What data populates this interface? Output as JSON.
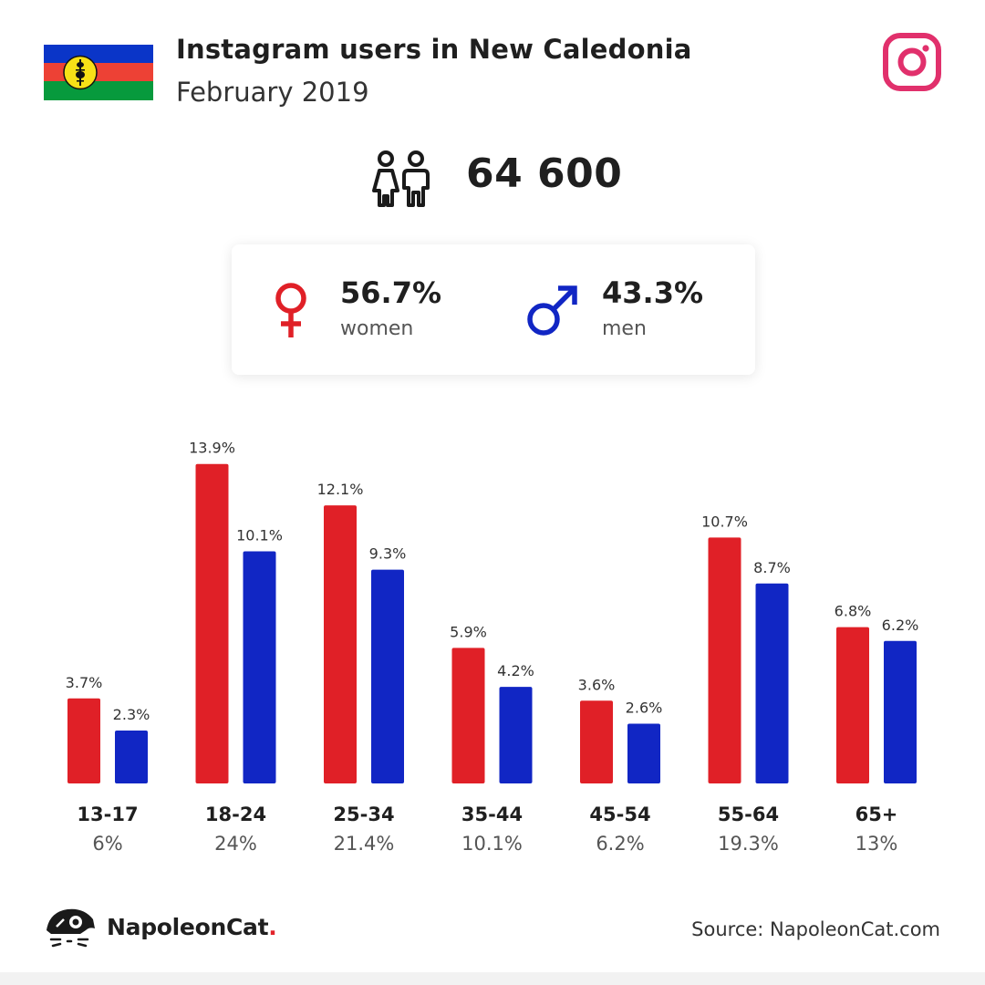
{
  "header": {
    "title": "Instagram users in New Caledonia",
    "subtitle": "February 2019"
  },
  "total_users": "64 600",
  "gender": {
    "women_pct": "56.7%",
    "women_label": "women",
    "men_pct": "43.3%",
    "men_label": "men"
  },
  "colors": {
    "women": "#e02027",
    "men": "#1126c4",
    "instagram": "#e1306c"
  },
  "chart_data": {
    "type": "bar",
    "categories": [
      "13-17",
      "18-24",
      "25-34",
      "35-44",
      "45-54",
      "55-64",
      "65+"
    ],
    "category_totals": [
      "6%",
      "24%",
      "21.4%",
      "10.1%",
      "6.2%",
      "19.3%",
      "13%"
    ],
    "series": [
      {
        "values": [
          3.7,
          13.9,
          12.1,
          5.9,
          3.6,
          10.7,
          6.8
        ],
        "labels": [
          "3.7%",
          "13.9%",
          "12.1%",
          "5.9%",
          "3.6%",
          "10.7%",
          "6.8%"
        ],
        "color": "#e02027"
      },
      {
        "values": [
          2.3,
          10.1,
          9.3,
          4.2,
          2.6,
          8.7,
          6.2
        ],
        "labels": [
          "2.3%",
          "10.1%",
          "9.3%",
          "4.2%",
          "2.6%",
          "8.7%",
          "6.2%"
        ],
        "color": "#1126c4"
      }
    ],
    "title": "",
    "xlabel": "",
    "ylabel": "",
    "ylim": [
      0,
      14
    ],
    "grid": false,
    "legend": "none"
  },
  "footer": {
    "brand_name": "NapoleonCat",
    "brand_dot": ".",
    "source": "Source: NapoleonCat.com"
  },
  "icons": {
    "flag": "new-caledonia-flag-icon",
    "instagram": "instagram-icon",
    "users": "users-icon",
    "female": "female-symbol-icon",
    "male": "male-symbol-icon",
    "logo": "napoleoncat-logo-icon"
  }
}
